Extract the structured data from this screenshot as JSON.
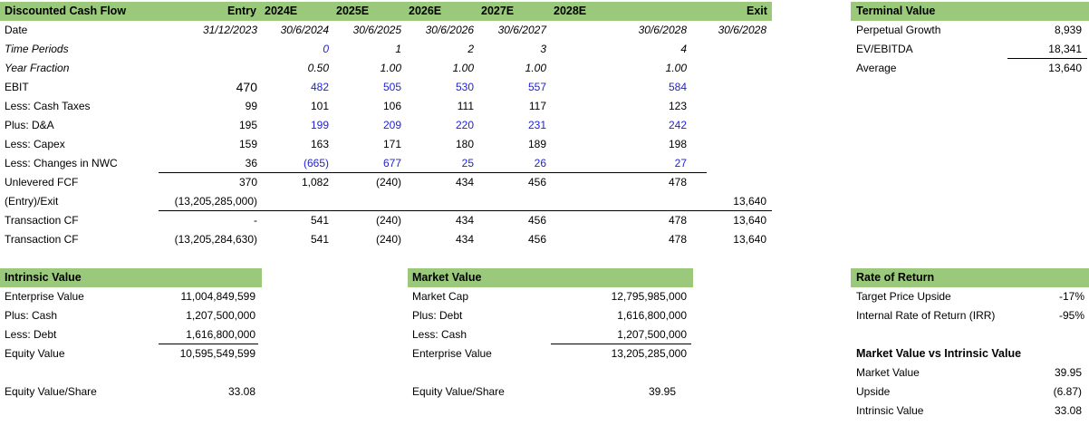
{
  "dcf": {
    "title": "Discounted Cash Flow",
    "col_headers": [
      "Entry",
      "2024E",
      "2025E",
      "2026E",
      "2027E",
      "2028E",
      "Exit"
    ],
    "rows": [
      {
        "label": "Date",
        "style": "",
        "values": [
          "31/12/2023",
          "30/6/2024",
          "30/6/2025",
          "30/6/2026",
          "30/6/2027",
          "30/6/2028",
          "30/6/2028"
        ],
        "colors": [
          "k",
          "k",
          "k",
          "k",
          "k",
          "k",
          "k"
        ],
        "italic_values": true
      },
      {
        "label": "Time Periods",
        "style": "i",
        "values": [
          "",
          "0",
          "1",
          "2",
          "3",
          "4",
          ""
        ],
        "colors": [
          "k",
          "b",
          "k",
          "k",
          "k",
          "k",
          "k"
        ],
        "italic_values": true
      },
      {
        "label": "Year Fraction",
        "style": "i",
        "values": [
          "",
          "0.50",
          "1.00",
          "1.00",
          "1.00",
          "1.00",
          ""
        ],
        "colors": [
          "k",
          "k",
          "k",
          "k",
          "k",
          "k",
          "k"
        ],
        "italic_values": true
      },
      {
        "label": "EBIT",
        "style": "",
        "values": [
          "470",
          "482",
          "505",
          "530",
          "557",
          "584",
          ""
        ],
        "colors": [
          "k",
          "b",
          "b",
          "b",
          "b",
          "b",
          "k"
        ]
      },
      {
        "label": "Less: Cash Taxes",
        "style": "",
        "values": [
          "99",
          "101",
          "106",
          "111",
          "117",
          "123",
          ""
        ],
        "colors": [
          "k",
          "k",
          "k",
          "k",
          "k",
          "k",
          "k"
        ]
      },
      {
        "label": "Plus: D&A",
        "style": "",
        "values": [
          "195",
          "199",
          "209",
          "220",
          "231",
          "242",
          ""
        ],
        "colors": [
          "k",
          "b",
          "b",
          "b",
          "b",
          "b",
          "k"
        ]
      },
      {
        "label": "Less: Capex",
        "style": "",
        "values": [
          "159",
          "163",
          "171",
          "180",
          "189",
          "198",
          ""
        ],
        "colors": [
          "k",
          "k",
          "k",
          "k",
          "k",
          "k",
          "k"
        ]
      },
      {
        "label": "Less: Changes in NWC",
        "style": "",
        "values": [
          "36",
          "(665)",
          "677",
          "25",
          "26",
          "27",
          ""
        ],
        "colors": [
          "k",
          "b",
          "b",
          "b",
          "b",
          "b",
          "k"
        ]
      },
      {
        "label": "Unlevered FCF",
        "style": "",
        "values": [
          "370",
          "1,082",
          "(240)",
          "434",
          "456",
          "478",
          ""
        ],
        "colors": [
          "k",
          "k",
          "k",
          "k",
          "k",
          "k",
          "k"
        ]
      },
      {
        "label": "(Entry)/Exit",
        "style": "",
        "values": [
          "(13,205,285,000)",
          "",
          "",
          "",
          "",
          "",
          "13,640"
        ],
        "colors": [
          "k",
          "k",
          "k",
          "k",
          "k",
          "k",
          "k"
        ]
      },
      {
        "label": "Transaction CF",
        "style": "",
        "values": [
          "-",
          "541",
          "(240)",
          "434",
          "456",
          "478",
          "13,640"
        ],
        "colors": [
          "k",
          "k",
          "k",
          "k",
          "k",
          "k",
          "k"
        ]
      },
      {
        "label": "Transaction CF",
        "style": "",
        "values": [
          "(13,205,284,630)",
          "541",
          "(240)",
          "434",
          "456",
          "478",
          "13,640"
        ],
        "colors": [
          "k",
          "k",
          "k",
          "k",
          "k",
          "k",
          "k"
        ]
      }
    ]
  },
  "terminal": {
    "title": "Terminal Value",
    "rows": [
      {
        "label": "Perpetual Growth",
        "value": "8,939"
      },
      {
        "label": "EV/EBITDA",
        "value": "18,341"
      },
      {
        "label": "Average",
        "value": "13,640"
      }
    ]
  },
  "intrinsic": {
    "title": "Intrinsic Value",
    "rows": [
      {
        "label": "Enterprise Value",
        "value": "11,004,849,599"
      },
      {
        "label": "Plus: Cash",
        "value": "1,207,500,000"
      },
      {
        "label": "Less: Debt",
        "value": "1,616,800,000"
      },
      {
        "label": "Equity Value",
        "value": "10,595,549,599"
      }
    ],
    "per_share_label": "Equity Value/Share",
    "per_share_value": "33.08"
  },
  "market": {
    "title": "Market Value",
    "rows": [
      {
        "label": "Market Cap",
        "value": "12,795,985,000"
      },
      {
        "label": "Plus: Debt",
        "value": "1,616,800,000"
      },
      {
        "label": "Less: Cash",
        "value": "1,207,500,000"
      },
      {
        "label": "Enterprise Value",
        "value": "13,205,285,000"
      }
    ],
    "per_share_label": "Equity Value/Share",
    "per_share_value": "39.95"
  },
  "returns": {
    "title": "Rate of Return",
    "rows": [
      {
        "label": "Target Price Upside",
        "value": "-17%"
      },
      {
        "label": "Internal Rate of Return (IRR)",
        "value": "-95%"
      }
    ],
    "mv_title": "Market Value vs Intrinsic Value",
    "mv_rows": [
      {
        "label": "Market Value",
        "value": "39.95"
      },
      {
        "label": "Upside",
        "value": "(6.87)"
      },
      {
        "label": "Intrinsic Value",
        "value": "33.08"
      }
    ]
  },
  "colors": {
    "header_green": "#9BC97C",
    "input_blue": "#1F1FD6"
  }
}
